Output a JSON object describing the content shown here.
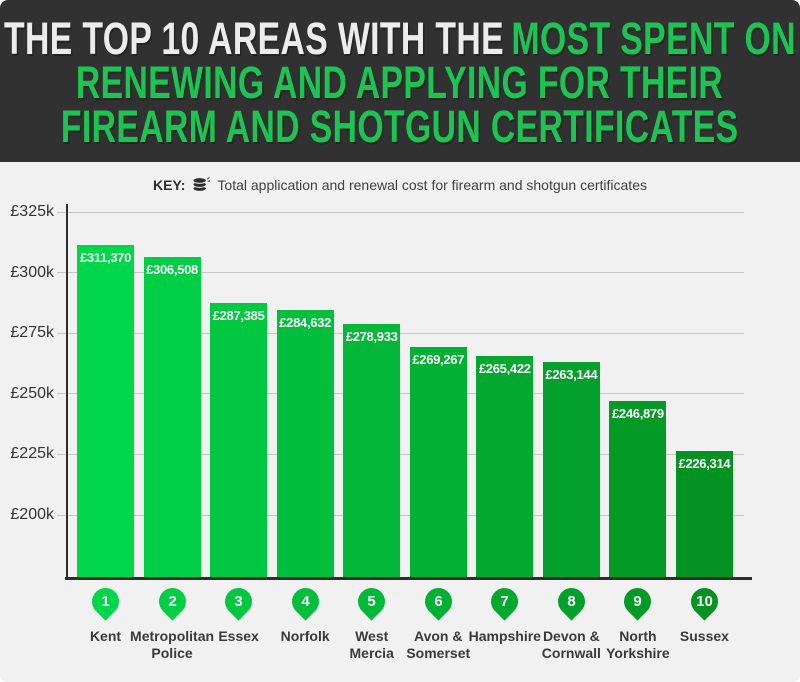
{
  "header": {
    "line1_white": "THE TOP 10 AREAS WITH THE",
    "line1_green": "MOST SPENT ON",
    "line2": "RENEWING AND APPLYING FOR THEIR",
    "line3": "FIREARM AND SHOTGUN CERTIFICATES"
  },
  "key": {
    "label": "KEY:",
    "icon": "coins-icon",
    "text": "Total application and renewal cost for firearm and shotgun certificates"
  },
  "colors": {
    "header_bg": "#313131",
    "header_green": "#1bc553",
    "page_bg": "#f1f1f1",
    "axis": "#2e2e2e",
    "gridline": "#c6c6c6",
    "bar_gradient_start": "#00d64a",
    "bar_gradient_end": "#049222",
    "bar_value_text": "#ffffff",
    "area_label_text": "#3a3a3a"
  },
  "chart_data": {
    "type": "bar",
    "title": "THE TOP 10 AREAS WITH THE MOST SPENT ON RENEWING AND APPLYING FOR THEIR FIREARM AND SHOTGUN CERTIFICATES",
    "key_note": "Total application and renewal cost for firearm and shotgun certificates",
    "xlabel": "",
    "ylabel": "",
    "grid": true,
    "ylim": [
      200000,
      325000
    ],
    "y_axis": {
      "tick_labels": [
        "£325k",
        "£300k",
        "£275k",
        "£250k",
        "£225k",
        "£200k"
      ],
      "tick_values": [
        325000,
        300000,
        275000,
        250000,
        225000,
        200000
      ]
    },
    "categories": [
      "Kent",
      "Metropolitan Police",
      "Essex",
      "Norfolk",
      "West Mercia",
      "Avon & Somerset",
      "Hampshire",
      "Devon & Cornwall",
      "North Yorkshire",
      "Sussex"
    ],
    "values": [
      311370,
      306508,
      287385,
      284632,
      278933,
      269267,
      265422,
      263144,
      246879,
      226314
    ],
    "areas": [
      {
        "rank": 1,
        "name": "Kent",
        "name_lines": [
          "Kent"
        ],
        "value": 311370,
        "value_label": "£311,370",
        "color": "#00d64a"
      },
      {
        "rank": 2,
        "name": "Metropolitan Police",
        "name_lines": [
          "Metropolitan",
          "Police"
        ],
        "value": 306508,
        "value_label": "£306,508",
        "color": "#00ce46"
      },
      {
        "rank": 3,
        "name": "Essex",
        "name_lines": [
          "Essex"
        ],
        "value": 287385,
        "value_label": "£287,385",
        "color": "#01c741"
      },
      {
        "rank": 4,
        "name": "Norfolk",
        "name_lines": [
          "Norfolk"
        ],
        "value": 284632,
        "value_label": "£284,632",
        "color": "#01bf3d"
      },
      {
        "rank": 5,
        "name": "West Mercia",
        "name_lines": [
          "West",
          "Mercia"
        ],
        "value": 278933,
        "value_label": "£278,933",
        "color": "#02b838"
      },
      {
        "rank": 6,
        "name": "Avon & Somerset",
        "name_lines": [
          "Avon &",
          "Somerset"
        ],
        "value": 269267,
        "value_label": "£269,267",
        "color": "#02b034"
      },
      {
        "rank": 7,
        "name": "Hampshire",
        "name_lines": [
          "Hampshire"
        ],
        "value": 265422,
        "value_label": "£265,422",
        "color": "#03a92f"
      },
      {
        "rank": 8,
        "name": "Devon & Cornwall",
        "name_lines": [
          "Devon &",
          "Cornwall"
        ],
        "value": 263144,
        "value_label": "£263,144",
        "color": "#03a12b"
      },
      {
        "rank": 9,
        "name": "North Yorkshire",
        "name_lines": [
          "North",
          "Yorkshire"
        ],
        "value": 246879,
        "value_label": "£246,879",
        "color": "#049a26"
      },
      {
        "rank": 10,
        "name": "Sussex",
        "name_lines": [
          "Sussex"
        ],
        "value": 226314,
        "value_label": "£226,314",
        "color": "#049222"
      }
    ]
  }
}
